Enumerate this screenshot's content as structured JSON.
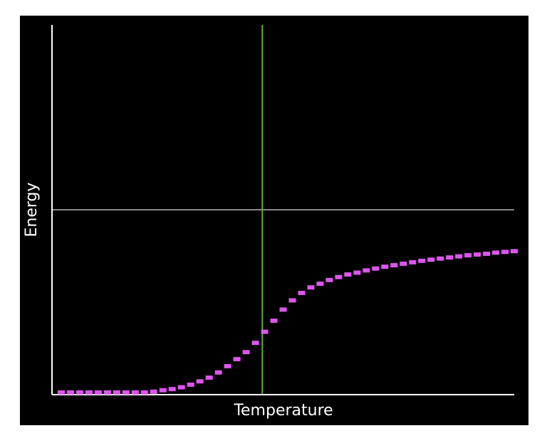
{
  "chart_data": {
    "type": "scatter",
    "x_label": "Temperature",
    "y_label": "Energy",
    "xlim": [
      0,
      1
    ],
    "ylim": [
      0,
      1
    ],
    "background": "#000000",
    "axis_color": "#ffffff",
    "hline": {
      "value": 0.5,
      "color": "#8a8a8a"
    },
    "vline": {
      "value": 0.455,
      "color": "#5faf3a"
    },
    "x": [
      0.02,
      0.04,
      0.06,
      0.08,
      0.1,
      0.12,
      0.14,
      0.16,
      0.18,
      0.2,
      0.22,
      0.24,
      0.26,
      0.28,
      0.3,
      0.32,
      0.34,
      0.36,
      0.38,
      0.4,
      0.42,
      0.44,
      0.46,
      0.48,
      0.5,
      0.52,
      0.54,
      0.56,
      0.58,
      0.6,
      0.62,
      0.64,
      0.66,
      0.68,
      0.7,
      0.72,
      0.74,
      0.76,
      0.78,
      0.8,
      0.82,
      0.84,
      0.86,
      0.88,
      0.9,
      0.92,
      0.94,
      0.96,
      0.98,
      1.0
    ],
    "series": [
      {
        "color": "#dd55ee",
        "values": [
          0.006,
          0.006,
          0.006,
          0.006,
          0.006,
          0.006,
          0.006,
          0.006,
          0.006,
          0.006,
          0.008,
          0.012,
          0.015,
          0.02,
          0.027,
          0.036,
          0.046,
          0.06,
          0.077,
          0.096,
          0.115,
          0.14,
          0.17,
          0.2,
          0.23,
          0.255,
          0.275,
          0.29,
          0.3,
          0.31,
          0.318,
          0.325,
          0.33,
          0.336,
          0.341,
          0.346,
          0.35,
          0.354,
          0.358,
          0.362,
          0.365,
          0.368,
          0.371,
          0.374,
          0.377,
          0.379,
          0.381,
          0.384,
          0.386,
          0.388
        ]
      }
    ]
  }
}
